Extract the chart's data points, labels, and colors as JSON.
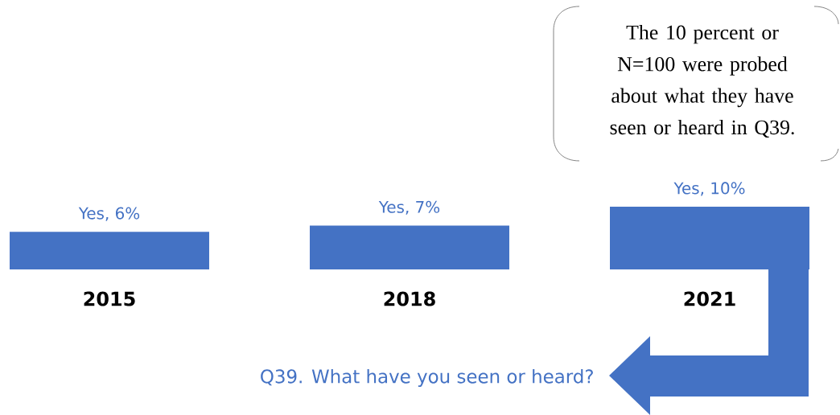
{
  "chart_data": {
    "type": "bar",
    "categories": [
      "2015",
      "2018",
      "2021"
    ],
    "values": [
      6,
      7,
      10
    ],
    "value_labels": [
      "Yes, 6%",
      "Yes, 7%",
      "Yes, 10%"
    ],
    "color": "#4472c4",
    "annotations": [
      "The 10 percent or N=100 were probed about what they have seen or heard in Q39.",
      "Q39. What have you seen or heard?"
    ]
  }
}
